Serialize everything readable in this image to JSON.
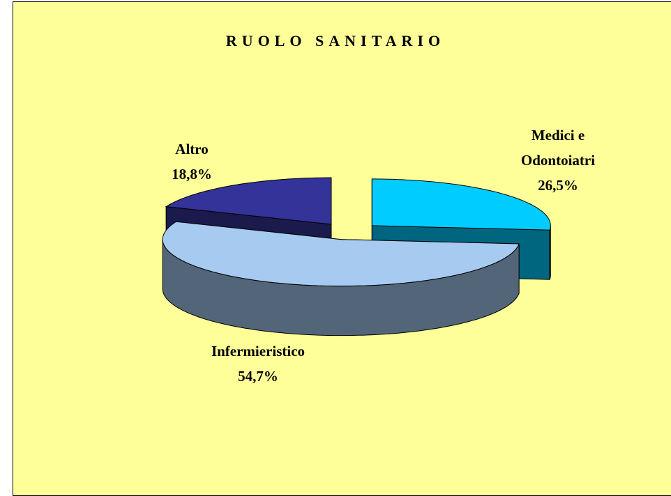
{
  "chart_data": {
    "type": "pie",
    "title": "RUOLO SANITARIO",
    "categories": [
      "Medici e Odontoiatri",
      "Infermieristico",
      "Altro"
    ],
    "values": [
      26.5,
      54.7,
      18.8
    ],
    "value_labels": [
      "26,5%",
      "54,7%",
      "18,8%"
    ],
    "colors": [
      "#00ccff",
      "#a6caf0",
      "#333399"
    ]
  }
}
